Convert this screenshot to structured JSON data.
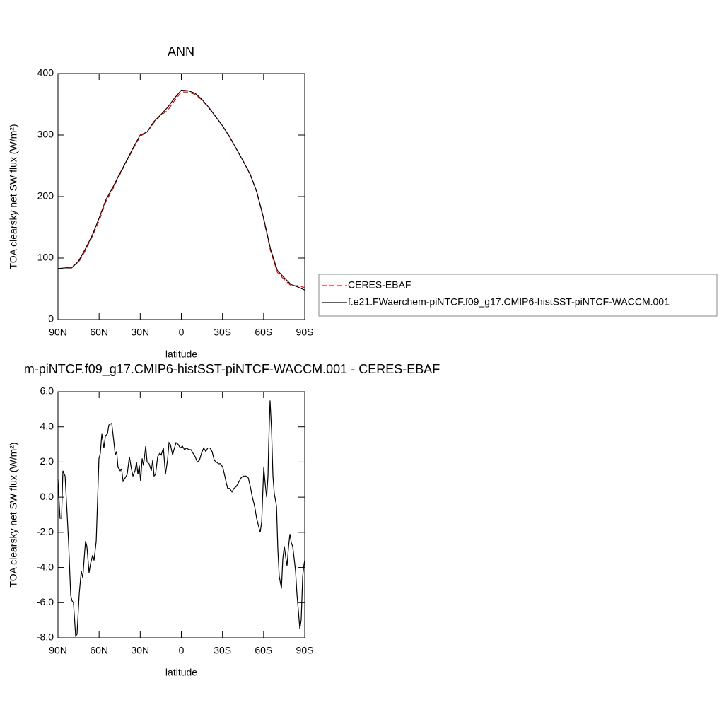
{
  "chart_data": [
    {
      "type": "line",
      "title": "ANN",
      "xlabel": "latitude",
      "ylabel": "TOA clearsky net SW flux (W/m²)",
      "x": [
        90,
        85,
        80,
        75,
        70,
        65,
        60,
        55,
        50,
        45,
        40,
        35,
        30,
        25,
        20,
        15,
        10,
        5,
        0,
        -5,
        -10,
        -15,
        -20,
        -25,
        -30,
        -35,
        -40,
        -45,
        -50,
        -55,
        -60,
        -65,
        -70,
        -75,
        -80,
        -85,
        -90
      ],
      "series": [
        {
          "name": "CERES-EBAF",
          "color": "#ff0000",
          "line_style": "dashed",
          "values": [
            82,
            84,
            86,
            93,
            112,
            135,
            160,
            192,
            212,
            235,
            257,
            278,
            298,
            305,
            320,
            332,
            340,
            356,
            370,
            370,
            366,
            357,
            344,
            330,
            315,
            297,
            278,
            258,
            238,
            207,
            163,
            112,
            77,
            65,
            55,
            55,
            52
          ]
        },
        {
          "name": "f.e21.FWaerchem-piNTCF.f09_g17.CMIP6-histSST-piNTCF-WACCM.001",
          "color": "#000000",
          "line_style": "solid",
          "values": [
            83,
            84,
            84,
            95,
            115,
            137,
            165,
            195,
            215,
            237,
            258,
            280,
            300,
            305,
            322,
            333,
            345,
            360,
            373,
            372,
            368,
            358,
            345,
            330,
            315,
            298,
            278,
            258,
            237,
            208,
            165,
            115,
            80,
            68,
            57,
            53,
            48
          ]
        }
      ],
      "xlim": [
        90,
        -90
      ],
      "xticks": [
        {
          "value": 90,
          "label": "90N"
        },
        {
          "value": 60,
          "label": "60N"
        },
        {
          "value": 30,
          "label": "30N"
        },
        0,
        {
          "value": -30,
          "label": "30S"
        },
        {
          "value": -60,
          "label": "60S"
        },
        {
          "value": -90,
          "label": "90S"
        }
      ],
      "ylim": [
        0,
        400
      ],
      "yticks": [
        0,
        100,
        200,
        300,
        400
      ],
      "legend": "outside-right"
    },
    {
      "type": "line",
      "title": "m-piNTCF.f09_g17.CMIP6-histSST-piNTCF-WACCM.001 - CERES-EBAF",
      "xlabel": "latitude",
      "ylabel": "TOA clearsky net SW flux (W/m²)",
      "x": [
        90,
        88.5,
        87.4,
        86.4,
        84.8,
        83.3,
        82.3,
        80.7,
        79.7,
        78.7,
        77.1,
        76.1,
        74.5,
        73.0,
        71.9,
        70.9,
        69.9,
        68.9,
        67.3,
        66.3,
        64.7,
        63.7,
        62.1,
        60.1,
        59.1,
        58.0,
        56.5,
        55.4,
        53.9,
        52.9,
        50.8,
        49.3,
        48.2,
        47.2,
        46.2,
        44.6,
        43.6,
        42.5,
        41.0,
        39.5,
        37.9,
        36.4,
        35.3,
        33.8,
        32.7,
        31.7,
        30.7,
        29.7,
        28.6,
        27.6,
        26.0,
        25.0,
        23.5,
        21.9,
        20.9,
        19.9,
        18.8,
        17.3,
        15.7,
        14.7,
        13.1,
        11.6,
        10.1,
        9.0,
        8.0,
        6.4,
        5.4,
        3.9,
        2.3,
        0.8,
        -0.8,
        -2.3,
        -3.9,
        -5.4,
        -7.0,
        -8.5,
        -10.1,
        -11.6,
        -13.2,
        -14.7,
        -16.3,
        -17.8,
        -19.3,
        -20.9,
        -22.4,
        -24.0,
        -25.5,
        -27.1,
        -28.6,
        -30.2,
        -31.7,
        -32.8,
        -33.8,
        -35.3,
        -36.9,
        -38.4,
        -40.0,
        -41.5,
        -43.6,
        -45.1,
        -47.2,
        -48.8,
        -50.3,
        -51.8,
        -53.4,
        -54.9,
        -56.5,
        -57.5,
        -58.6,
        -60.1,
        -61.1,
        -62.2,
        -63.2,
        -63.7,
        -64.7,
        -65.8,
        -66.8,
        -67.8,
        -69.4,
        -70.4,
        -71.4,
        -73.0,
        -74.0,
        -75.1,
        -76.1,
        -77.1,
        -78.2,
        -79.2,
        -80.2,
        -81.2,
        -82.3,
        -83.3,
        -84.3,
        -85.4,
        -86.4,
        -87.4,
        -88.5,
        -89.5,
        -90
      ],
      "series": [
        {
          "color": "#000000",
          "line_style": "solid",
          "values": [
            1.0,
            -1.2,
            -1.2,
            1.5,
            1.2,
            -1.0,
            -2.5,
            -5.6,
            -5.9,
            -6.0,
            -7.9,
            -7.8,
            -5.5,
            -4.2,
            -4.6,
            -3.5,
            -2.5,
            -2.8,
            -4.3,
            -3.8,
            -3.3,
            -3.6,
            -2.5,
            2.2,
            2.5,
            3.6,
            2.8,
            3.5,
            3.6,
            4.1,
            4.2,
            3.2,
            2.4,
            2.6,
            1.7,
            1.5,
            1.6,
            0.9,
            1.1,
            1.3,
            2.3,
            1.6,
            1.2,
            1.5,
            2.0,
            1.3,
            1.8,
            0.9,
            2.2,
            1.8,
            2.9,
            2.0,
            1.9,
            1.5,
            2.1,
            1.2,
            1.3,
            2.3,
            2.5,
            2.4,
            2.8,
            1.3,
            2.1,
            3.1,
            3.0,
            2.4,
            2.7,
            3.1,
            3.0,
            2.8,
            2.9,
            2.7,
            2.8,
            2.7,
            2.7,
            2.5,
            2.3,
            2.0,
            2.1,
            2.5,
            2.8,
            2.6,
            2.8,
            2.8,
            2.6,
            2.1,
            2.0,
            1.9,
            1.9,
            1.7,
            1.2,
            0.8,
            0.5,
            0.5,
            0.3,
            0.5,
            0.6,
            0.8,
            1.1,
            1.2,
            1.2,
            1.1,
            0.6,
            0.0,
            -0.5,
            -1.2,
            -1.7,
            -2.0,
            -1.4,
            1.7,
            0.8,
            0.0,
            1.2,
            3.0,
            5.5,
            3.8,
            1.2,
            0.2,
            -0.5,
            -3.0,
            -4.5,
            -5.2,
            -3.5,
            -2.8,
            -3.4,
            -3.9,
            -2.8,
            -2.1,
            -2.6,
            -2.8,
            -3.5,
            -4.2,
            -5.5,
            -6.5,
            -7.5,
            -7.0,
            -4.5,
            -3.8,
            -3.6
          ]
        }
      ],
      "xlim": [
        90,
        -90
      ],
      "xticks": [
        {
          "value": 90,
          "label": "90N"
        },
        {
          "value": 60,
          "label": "60N"
        },
        {
          "value": 30,
          "label": "30N"
        },
        0,
        {
          "value": -30,
          "label": "30S"
        },
        {
          "value": -60,
          "label": "60S"
        },
        {
          "value": -90,
          "label": "90S"
        }
      ],
      "ylim": [
        -8,
        6
      ],
      "yticks": [
        {
          "value": -8,
          "label": "-8.0"
        },
        {
          "value": -6,
          "label": "-6.0"
        },
        {
          "value": -4,
          "label": "-4.0"
        },
        {
          "value": -2,
          "label": "-2.0"
        },
        {
          "value": 0,
          "label": "0.0"
        },
        {
          "value": 2,
          "label": "2.0"
        },
        {
          "value": 4,
          "label": "4.0"
        },
        {
          "value": 6,
          "label": "6.0"
        }
      ]
    }
  ]
}
